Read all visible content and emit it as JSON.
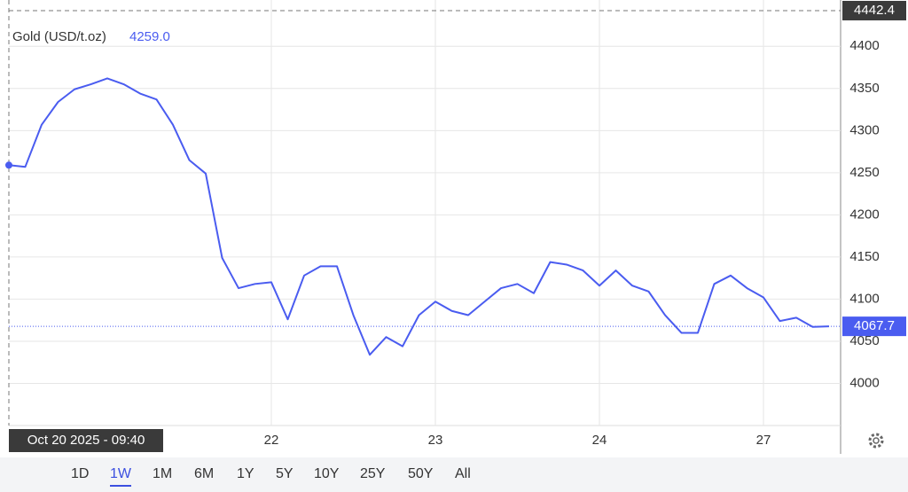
{
  "chart_data": {
    "type": "line",
    "title": "Gold (USD/t.oz)",
    "hover_label": "4259.0",
    "crosshair_date": "Oct 20 2025 - 09:40",
    "categories": [
      null,
      null,
      null,
      null,
      null,
      null,
      null,
      null,
      null,
      null,
      null,
      null,
      null,
      null,
      null,
      null,
      "22",
      null,
      null,
      null,
      null,
      null,
      null,
      null,
      null,
      null,
      "23",
      null,
      null,
      null,
      null,
      null,
      null,
      null,
      null,
      null,
      "24",
      null,
      null,
      null,
      null,
      null,
      null,
      null,
      null,
      null,
      "27",
      null,
      null,
      null,
      null
    ],
    "series": [
      {
        "name": "Gold",
        "color": "#4a5cf0",
        "values": [
          4259,
          4257,
          4307,
          4334,
          4349,
          4355,
          4362,
          4355,
          4344,
          4337,
          4307,
          4265,
          4249,
          4149,
          4113,
          4118,
          4120,
          4076,
          4128,
          4139,
          4139,
          4081,
          4034,
          4055,
          4044,
          4081,
          4097,
          4086,
          4081,
          4097,
          4113,
          4118,
          4107,
          4144,
          4141,
          4134,
          4116,
          4134,
          4116,
          4109,
          4081,
          4060,
          4060,
          4118,
          4128,
          4113,
          4102,
          4074,
          4078,
          4067,
          4067.7
        ]
      }
    ],
    "high": 4442.4,
    "last": 4067.7,
    "ylim": [
      3950,
      4455
    ],
    "yticks": [
      4000,
      4050,
      4100,
      4150,
      4200,
      4250,
      4300,
      4350,
      4400
    ],
    "grid": true
  },
  "ranges": [
    "1D",
    "1W",
    "1M",
    "6M",
    "1Y",
    "5Y",
    "10Y",
    "25Y",
    "50Y",
    "All"
  ],
  "selected_range": 1
}
